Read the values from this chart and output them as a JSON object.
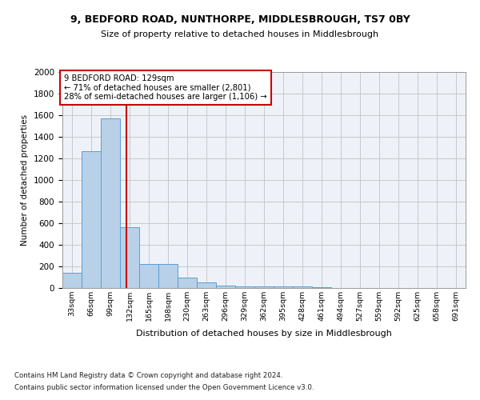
{
  "title1": "9, BEDFORD ROAD, NUNTHORPE, MIDDLESBROUGH, TS7 0BY",
  "title2": "Size of property relative to detached houses in Middlesbrough",
  "xlabel": "Distribution of detached houses by size in Middlesbrough",
  "ylabel": "Number of detached properties",
  "footer1": "Contains HM Land Registry data © Crown copyright and database right 2024.",
  "footer2": "Contains public sector information licensed under the Open Government Licence v3.0.",
  "annotation_title": "9 BEDFORD ROAD: 129sqm",
  "annotation_line1": "← 71% of detached houses are smaller (2,801)",
  "annotation_line2": "28% of semi-detached houses are larger (1,106) →",
  "bar_categories": [
    "33sqm",
    "66sqm",
    "99sqm",
    "132sqm",
    "165sqm",
    "198sqm",
    "230sqm",
    "263sqm",
    "296sqm",
    "329sqm",
    "362sqm",
    "395sqm",
    "428sqm",
    "461sqm",
    "494sqm",
    "527sqm",
    "559sqm",
    "592sqm",
    "625sqm",
    "658sqm",
    "691sqm"
  ],
  "bar_indices": [
    0,
    1,
    2,
    3,
    4,
    5,
    6,
    7,
    8,
    9,
    10,
    11,
    12,
    13,
    14,
    15,
    16,
    17,
    18,
    19,
    20
  ],
  "bar_heights": [
    140,
    1265,
    1570,
    560,
    220,
    220,
    95,
    50,
    25,
    18,
    15,
    18,
    12,
    5,
    3,
    3,
    2,
    2,
    1,
    1,
    1
  ],
  "vline_index": 2.82,
  "bar_color": "#b8d0e8",
  "bar_edge_color": "#5a9fd4",
  "vline_color": "#cc0000",
  "ylim": [
    0,
    2000
  ],
  "yticks": [
    0,
    200,
    400,
    600,
    800,
    1000,
    1200,
    1400,
    1600,
    1800,
    2000
  ],
  "grid_color": "#c8c8c8",
  "background_color": "#eef2f8",
  "annotation_box_color": "#cc0000"
}
